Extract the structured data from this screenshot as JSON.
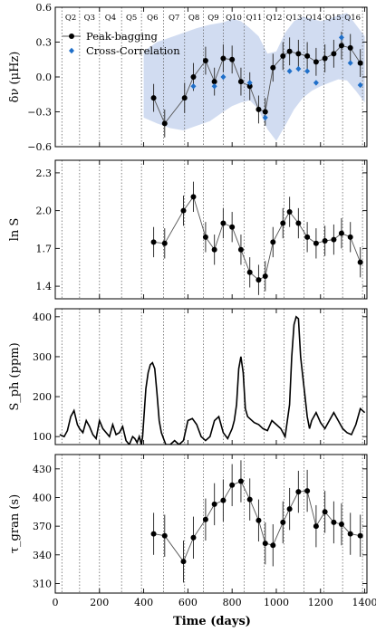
{
  "figure": {
    "xlabel": "Time (days)",
    "xticks": [
      0,
      200,
      400,
      600,
      800,
      1000,
      1200,
      1400
    ],
    "xlim": [
      0,
      1410
    ],
    "quarter_labels": [
      "Q2",
      "Q3",
      "Q4",
      "Q5",
      "Q6",
      "Q7",
      "Q8",
      "Q9",
      "Q10",
      "Q11",
      "Q12",
      "Q13",
      "Q14",
      "Q15",
      "Q16"
    ],
    "quarter_boundaries": [
      30,
      110,
      200,
      300,
      390,
      490,
      585,
      670,
      760,
      855,
      945,
      1035,
      1125,
      1215,
      1300,
      1390
    ]
  },
  "colors": {
    "peak": "#000000",
    "xcorr": "#1f6fc9",
    "band": "#c9d6ee",
    "line": "#555555",
    "boundary": "#666666"
  },
  "chart_data": [
    {
      "type": "line",
      "ylabel": "δν (μHz)",
      "ylim": [
        -0.6,
        0.6
      ],
      "yticks": [
        -0.6,
        -0.3,
        0.0,
        0.3,
        0.6
      ],
      "yticklabels": [
        "−0.6",
        "−0.3",
        "0.0",
        "0.3",
        "0.6"
      ],
      "legend": {
        "placement": "top-left",
        "entries": [
          "Peak-bagging",
          "Cross-Correlation"
        ]
      },
      "band": {
        "x": [
          400,
          460,
          520,
          580,
          640,
          700,
          760,
          800,
          840,
          880,
          920,
          960,
          1000,
          1040,
          1080,
          1120,
          1160,
          1200,
          1240,
          1280,
          1320,
          1360,
          1400
        ],
        "upper": [
          0.22,
          0.3,
          0.34,
          0.38,
          0.42,
          0.45,
          0.47,
          0.5,
          0.48,
          0.42,
          0.35,
          0.2,
          0.22,
          0.38,
          0.48,
          0.52,
          0.5,
          0.48,
          0.5,
          0.53,
          0.55,
          0.45,
          0.35
        ],
        "lower": [
          -0.35,
          -0.4,
          -0.44,
          -0.46,
          -0.42,
          -0.38,
          -0.3,
          -0.25,
          -0.22,
          -0.2,
          -0.28,
          -0.45,
          -0.55,
          -0.42,
          -0.28,
          -0.18,
          -0.12,
          -0.08,
          -0.05,
          -0.02,
          -0.03,
          -0.12,
          -0.22
        ]
      },
      "series": [
        {
          "name": "Peak-bagging",
          "x": [
            445,
            495,
            585,
            625,
            680,
            720,
            760,
            800,
            840,
            880,
            920,
            950,
            985,
            1030,
            1060,
            1100,
            1140,
            1180,
            1220,
            1260,
            1295,
            1335,
            1380
          ],
          "y": [
            -0.18,
            -0.4,
            -0.18,
            0.0,
            0.14,
            -0.04,
            0.16,
            0.15,
            -0.04,
            -0.08,
            -0.28,
            -0.3,
            0.08,
            0.18,
            0.22,
            0.2,
            0.18,
            0.13,
            0.16,
            0.2,
            0.27,
            0.25,
            0.12
          ],
          "err": [
            0.12,
            0.12,
            0.13,
            0.12,
            0.12,
            0.12,
            0.12,
            0.12,
            0.12,
            0.12,
            0.12,
            0.12,
            0.12,
            0.12,
            0.12,
            0.12,
            0.12,
            0.12,
            0.12,
            0.12,
            0.12,
            0.12,
            0.12
          ]
        },
        {
          "name": "Cross-Correlation",
          "x": [
            625,
            720,
            760,
            880,
            950,
            1060,
            1100,
            1140,
            1180,
            1295,
            1335,
            1380
          ],
          "y": [
            -0.08,
            -0.08,
            0.0,
            -0.05,
            -0.35,
            0.05,
            0.07,
            0.05,
            -0.05,
            0.34,
            0.12,
            -0.07
          ]
        }
      ]
    },
    {
      "type": "line",
      "ylabel": "ln S",
      "ylim": [
        1.3,
        2.4
      ],
      "yticks": [
        1.4,
        1.7,
        2.0,
        2.3
      ],
      "yticklabels": [
        "1.4",
        "1.7",
        "2.0",
        "2.3"
      ],
      "series": [
        {
          "name": "",
          "x": [
            445,
            495,
            580,
            625,
            680,
            720,
            760,
            800,
            840,
            880,
            920,
            950,
            985,
            1030,
            1060,
            1100,
            1140,
            1180,
            1220,
            1260,
            1295,
            1335,
            1380
          ],
          "y": [
            1.75,
            1.74,
            2.0,
            2.11,
            1.79,
            1.69,
            1.9,
            1.87,
            1.69,
            1.51,
            1.45,
            1.48,
            1.75,
            1.9,
            1.99,
            1.9,
            1.79,
            1.74,
            1.76,
            1.77,
            1.82,
            1.79,
            1.59
          ],
          "err": [
            0.12,
            0.12,
            0.12,
            0.12,
            0.12,
            0.12,
            0.12,
            0.12,
            0.12,
            0.12,
            0.12,
            0.12,
            0.12,
            0.12,
            0.12,
            0.12,
            0.12,
            0.12,
            0.12,
            0.12,
            0.12,
            0.12,
            0.12
          ]
        }
      ]
    },
    {
      "type": "line",
      "ylabel": "S_ph (ppm)",
      "ylim": [
        80,
        420
      ],
      "yticks": [
        100,
        200,
        300,
        400
      ],
      "yticklabels": [
        "100",
        "200",
        "300",
        "400"
      ],
      "series": [
        {
          "name": "",
          "x": [
            20,
            40,
            55,
            70,
            85,
            100,
            110,
            125,
            140,
            155,
            170,
            185,
            200,
            215,
            230,
            245,
            260,
            275,
            290,
            305,
            320,
            335,
            350,
            360,
            370,
            380,
            390,
            395,
            400,
            410,
            420,
            430,
            440,
            450,
            460,
            470,
            480,
            490,
            500,
            520,
            540,
            560,
            580,
            600,
            620,
            640,
            660,
            680,
            700,
            720,
            740,
            760,
            780,
            800,
            810,
            820,
            830,
            840,
            850,
            860,
            870,
            880,
            900,
            920,
            940,
            960,
            980,
            1000,
            1020,
            1040,
            1060,
            1070,
            1080,
            1090,
            1100,
            1110,
            1120,
            1130,
            1140,
            1150,
            1160,
            1180,
            1200,
            1220,
            1240,
            1260,
            1280,
            1300,
            1320,
            1340,
            1360,
            1380,
            1400
          ],
          "y": [
            105,
            100,
            115,
            150,
            165,
            130,
            120,
            110,
            140,
            125,
            105,
            95,
            140,
            120,
            110,
            100,
            130,
            105,
            110,
            125,
            90,
            80,
            100,
            95,
            85,
            100,
            80,
            100,
            140,
            220,
            260,
            280,
            285,
            270,
            210,
            140,
            110,
            95,
            80,
            80,
            90,
            80,
            90,
            140,
            145,
            130,
            100,
            90,
            100,
            140,
            150,
            110,
            95,
            120,
            140,
            180,
            270,
            300,
            260,
            170,
            150,
            145,
            135,
            130,
            120,
            115,
            140,
            130,
            120,
            100,
            180,
            300,
            380,
            400,
            395,
            300,
            250,
            200,
            150,
            120,
            140,
            160,
            135,
            120,
            140,
            160,
            140,
            120,
            110,
            105,
            130,
            170,
            160
          ]
        }
      ]
    },
    {
      "type": "line",
      "ylabel": "τ_gran (s)",
      "ylim": [
        300,
        445
      ],
      "yticks": [
        310,
        340,
        370,
        400,
        430
      ],
      "yticklabels": [
        "310",
        "340",
        "370",
        "400",
        "430"
      ],
      "series": [
        {
          "name": "",
          "x": [
            445,
            495,
            580,
            625,
            680,
            720,
            760,
            800,
            840,
            880,
            920,
            950,
            985,
            1030,
            1060,
            1100,
            1140,
            1180,
            1220,
            1260,
            1295,
            1335,
            1380
          ],
          "y": [
            362,
            360,
            333,
            358,
            377,
            393,
            397,
            413,
            417,
            398,
            376,
            352,
            350,
            374,
            388,
            406,
            407,
            370,
            385,
            374,
            372,
            362,
            360
          ],
          "err": [
            22,
            22,
            22,
            22,
            22,
            22,
            22,
            22,
            22,
            22,
            22,
            22,
            22,
            22,
            22,
            22,
            22,
            22,
            22,
            22,
            22,
            22,
            22
          ]
        }
      ]
    }
  ]
}
